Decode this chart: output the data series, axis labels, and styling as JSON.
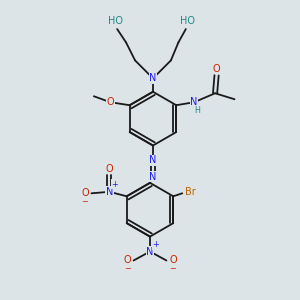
{
  "bg_color": "#dde4e8",
  "bond_color": "#1a1a1a",
  "N_color": "#1a1aee",
  "O_color": "#cc2200",
  "Br_color": "#bb6600",
  "HO_color": "#228888",
  "figsize": [
    3.0,
    3.0
  ],
  "dpi": 100,
  "xlim": [
    0,
    10
  ],
  "ylim": [
    0,
    10
  ]
}
